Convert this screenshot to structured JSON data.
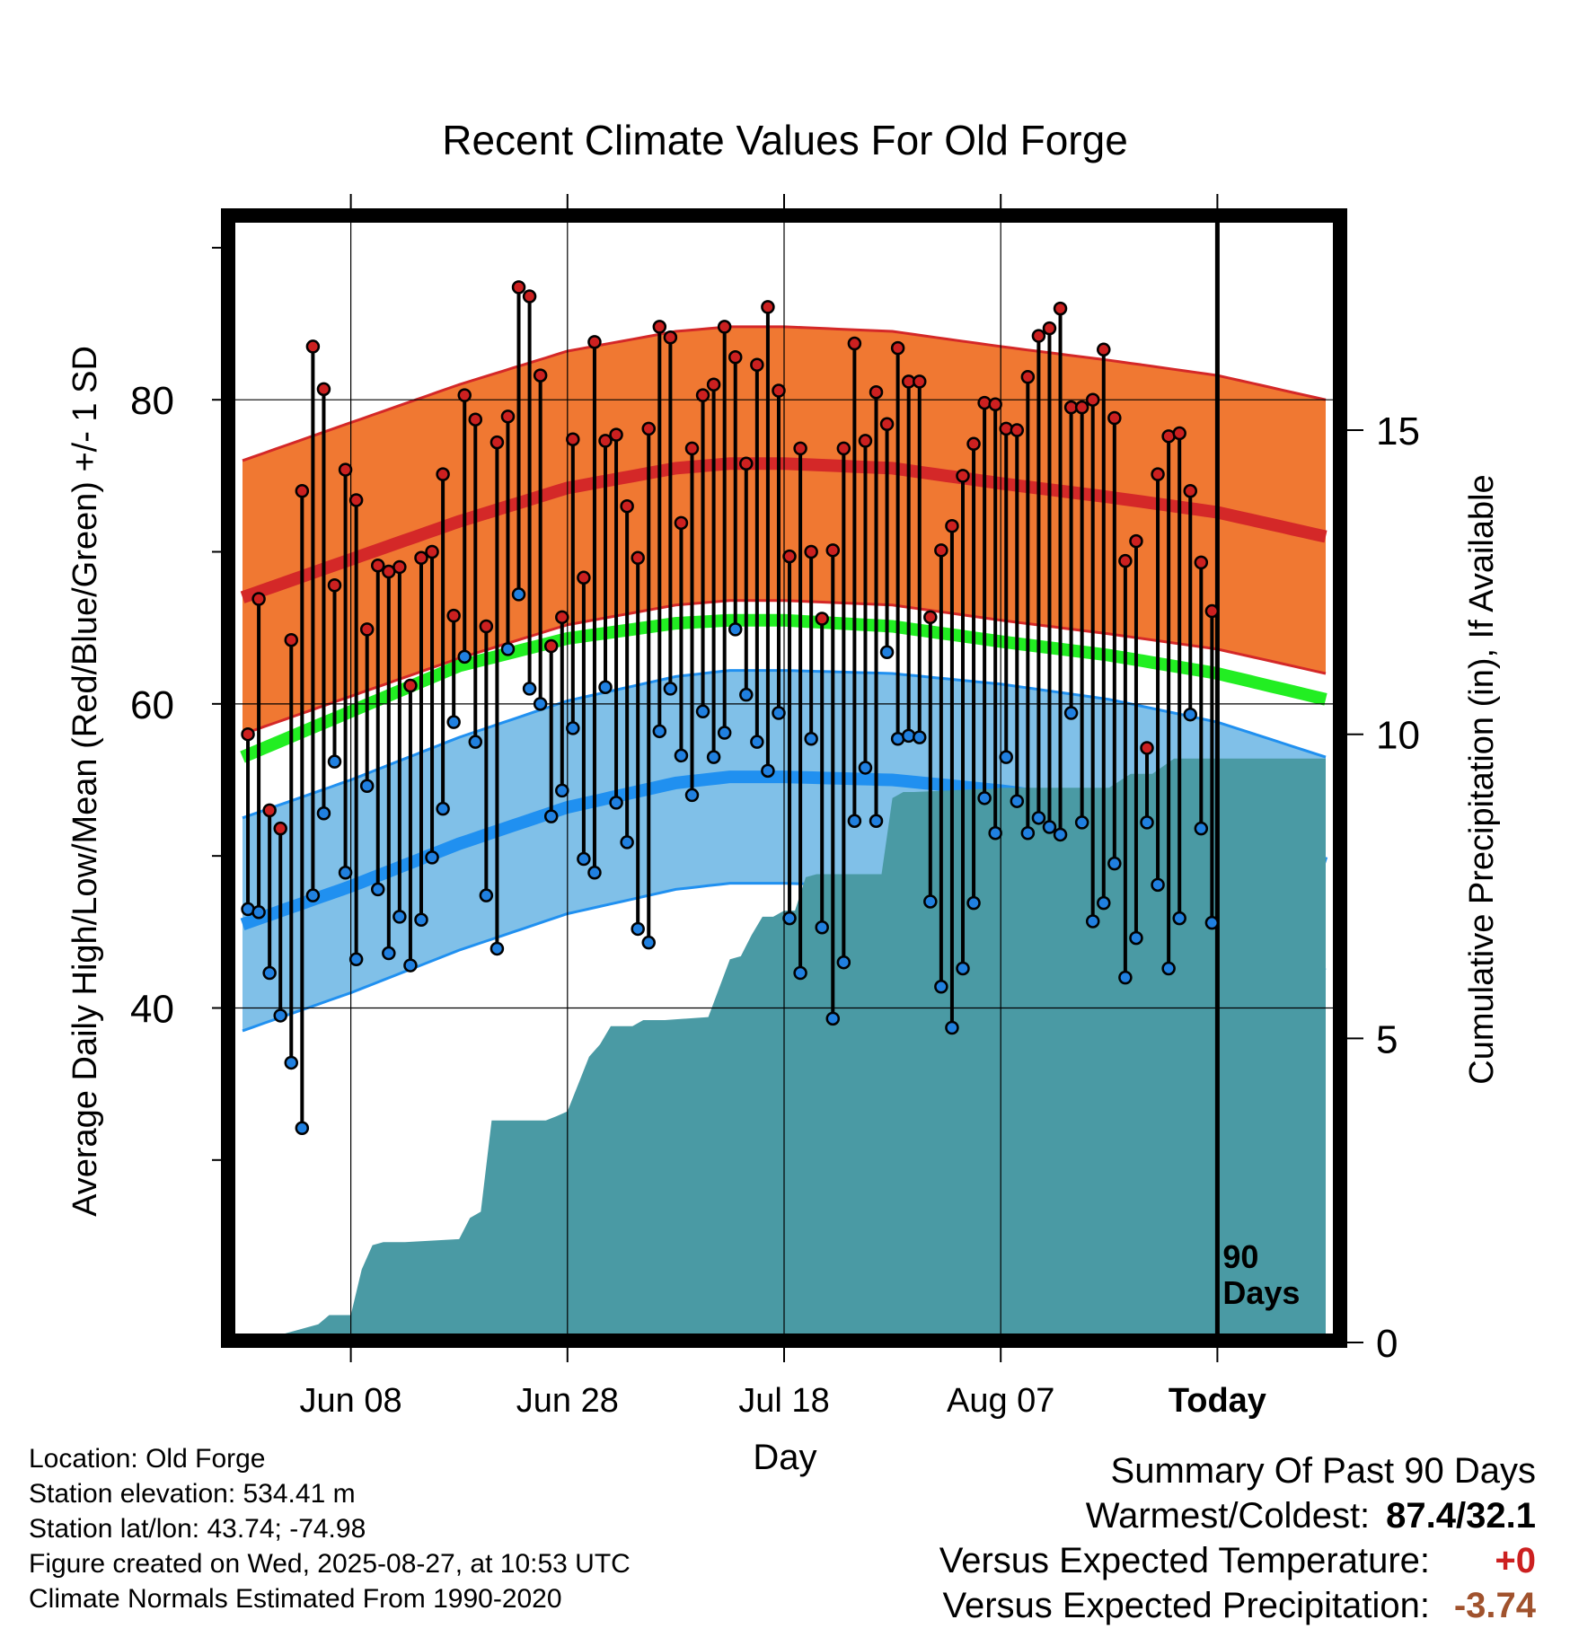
{
  "chart_data": {
    "type": "line",
    "title": "Recent Climate Values For Old Forge",
    "xlabel": "Day",
    "ylabel": "Average Daily High/Low/Mean (Red/Blue/Green) +/- 1 SD",
    "y2label": "Cumulative Precipitation (in), If Available",
    "x_tick_labels": [
      "Jun 08",
      "Jun 28",
      "Jul 18",
      "Aug 07",
      "Today"
    ],
    "x_tick_days": [
      10,
      30,
      50,
      70,
      90
    ],
    "xlim": [
      0,
      100
    ],
    "ylim": [
      18,
      92
    ],
    "y_ticks": [
      40,
      60,
      80
    ],
    "y2lim": [
      0,
      18.5
    ],
    "y2_ticks": [
      0,
      5,
      10,
      15
    ],
    "today_marker_label": "90 Days",
    "grid": true,
    "colors": {
      "high_band": "#f07832",
      "high_mean": "#d42828",
      "low_band": "#80c0e8",
      "low_mean": "#2090f0",
      "mean": "#22ee22",
      "precip": "#4a9aa4",
      "high_point": "#cc2020",
      "low_point": "#2080e0"
    },
    "normals": {
      "days": [
        0,
        10,
        20,
        30,
        40,
        45,
        50,
        60,
        70,
        80,
        90,
        100
      ],
      "high_mean": [
        67,
        69.5,
        72,
        74.2,
        75.5,
        75.8,
        75.8,
        75.5,
        74.5,
        73.6,
        72.6,
        71
      ],
      "high_sd": 9,
      "low_mean": [
        45.5,
        48,
        50.8,
        53.2,
        54.8,
        55.2,
        55.2,
        55,
        54.3,
        53.3,
        51.8,
        49.5
      ],
      "low_sd": 7,
      "mean": [
        56.5,
        59.5,
        62.5,
        64.3,
        65.3,
        65.5,
        65.5,
        65.1,
        64.1,
        63.2,
        62,
        60.3
      ]
    },
    "series": [
      {
        "name": "High",
        "values": [
          58,
          66.9,
          53,
          51.8,
          64.2,
          74,
          83.5,
          80.7,
          67.8,
          75.4,
          73.4,
          64.9,
          69.1,
          68.7,
          69,
          61.2,
          69.6,
          70,
          75.1,
          65.8,
          80.3,
          78.7,
          65.1,
          77.2,
          78.9,
          87.4,
          86.8,
          81.6,
          63.8,
          65.7,
          77.4,
          68.3,
          83.8,
          77.3,
          77.7,
          73,
          69.6,
          78.1,
          84.8,
          84.1,
          71.9,
          76.8,
          80.3,
          81,
          84.8,
          82.8,
          75.8,
          82.3,
          86.1,
          80.6,
          69.7,
          76.8,
          70,
          65.6,
          70.1,
          76.8,
          83.7,
          77.3,
          80.5,
          78.4,
          83.4,
          81.2,
          81.2,
          65.7,
          70.1,
          71.7,
          75,
          77.1,
          79.8,
          79.7,
          78.1,
          78,
          81.5,
          84.2,
          84.7,
          86,
          79.5,
          79.5,
          80,
          83.3,
          78.8,
          69.4,
          70.7,
          57.1,
          75.1,
          77.6,
          77.8,
          74,
          69.3,
          66.1
        ],
        "color": "#cc2020"
      },
      {
        "name": "Low",
        "values": [
          46.5,
          46.3,
          42.3,
          39.5,
          36.4,
          32.1,
          47.4,
          52.8,
          56.2,
          48.9,
          43.2,
          54.6,
          47.8,
          43.6,
          46,
          42.8,
          45.8,
          49.9,
          53.1,
          58.8,
          63.1,
          57.5,
          47.4,
          43.9,
          63.6,
          67.2,
          61,
          60,
          52.6,
          54.3,
          58.4,
          49.8,
          48.9,
          61.1,
          53.5,
          50.9,
          45.2,
          44.3,
          58.2,
          61,
          56.6,
          54,
          59.5,
          56.5,
          58.1,
          64.9,
          60.6,
          57.5,
          55.6,
          59.4,
          45.9,
          42.3,
          57.7,
          45.3,
          39.3,
          43,
          52.3,
          55.8,
          52.3,
          63.4,
          57.7,
          57.9,
          57.8,
          47,
          41.4,
          38.7,
          42.6,
          46.9,
          53.8,
          51.5,
          56.5,
          53.6,
          51.5,
          52.5,
          51.9,
          51.4,
          59.4,
          52.2,
          45.7,
          46.9,
          49.5,
          42,
          44.6,
          52.2,
          48.1,
          42.6,
          45.9,
          59.3,
          51.8,
          45.6
        ],
        "color": "#2080e0"
      },
      {
        "name": "Cumulative Precipitation",
        "days": [
          0,
          2,
          3,
          4,
          7,
          8,
          10,
          11,
          12,
          13,
          14,
          15,
          20,
          21,
          22,
          23,
          24,
          28,
          29,
          30,
          31,
          32,
          33,
          34,
          35,
          36,
          37,
          38,
          39,
          43,
          45,
          46,
          47,
          48,
          49,
          50,
          51,
          52,
          53,
          54,
          55,
          59,
          60,
          61,
          62,
          68,
          69,
          70,
          80,
          82,
          83,
          84,
          86,
          100
        ],
        "values": [
          0,
          0.05,
          0.1,
          0.15,
          0.3,
          0.45,
          0.45,
          1.2,
          1.6,
          1.65,
          1.65,
          1.65,
          1.7,
          2.05,
          2.15,
          3.65,
          3.65,
          3.65,
          3.72,
          3.8,
          4.25,
          4.7,
          4.9,
          5.2,
          5.2,
          5.2,
          5.3,
          5.3,
          5.3,
          5.35,
          6.3,
          6.35,
          6.7,
          7.0,
          7.0,
          7.1,
          7.1,
          7.65,
          7.7,
          7.7,
          7.7,
          7.7,
          8.95,
          9.05,
          9.05,
          9.1,
          9.1,
          9.12,
          9.12,
          9.35,
          9.35,
          9.35,
          9.6,
          9.6
        ],
        "color": "#4a9aa4"
      }
    ]
  },
  "footer": {
    "location": "Location: Old Forge",
    "elevation": "Station elevation: 534.41 m",
    "latlon": "Station lat/lon: 43.74; -74.98",
    "created": "Figure created on Wed, 2025-08-27, at 10:53 UTC",
    "normals": "Climate Normals Estimated From 1990-2020"
  },
  "summary": {
    "title": "Summary Of Past 90 Days",
    "warmest_label": "Warmest/Coldest:",
    "warmest_value": "87.4/32.1",
    "temp_label": "Versus Expected Temperature:",
    "temp_value": "+0",
    "temp_color": "#cc2020",
    "precip_label": "Versus Expected Precipitation:",
    "precip_value": "-3.74",
    "precip_color": "#a0522d"
  }
}
